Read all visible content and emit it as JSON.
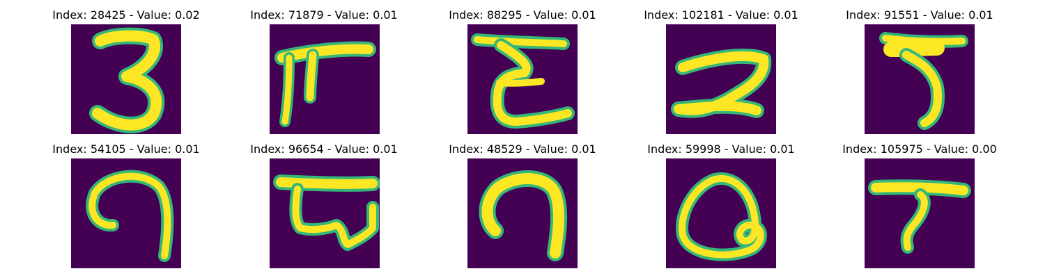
{
  "figure": {
    "panels": [
      {
        "title": "Index: 28425 - Value: 0.02",
        "glyph": "handwritten digit resembling 3",
        "colormap": "viridis"
      },
      {
        "title": "Index: 71879 - Value: 0.01",
        "glyph": "handwritten glyph resembling pi / F",
        "colormap": "viridis"
      },
      {
        "title": "Index: 88295 - Value: 0.01",
        "glyph": "handwritten glyph resembling E / 3 with top bar",
        "colormap": "viridis"
      },
      {
        "title": "Index: 102181 - Value: 0.01",
        "glyph": "handwritten glyph resembling 2",
        "colormap": "viridis"
      },
      {
        "title": "Index: 91551 - Value: 0.01",
        "glyph": "handwritten glyph resembling 5",
        "colormap": "viridis"
      },
      {
        "title": "Index: 54105 - Value: 0.01",
        "glyph": "handwritten glyph resembling reversed 6 / 9",
        "colormap": "viridis"
      },
      {
        "title": "Index: 96654 - Value: 0.01",
        "glyph": "handwritten glyph with top bar and loops",
        "colormap": "viridis"
      },
      {
        "title": "Index: 48529 - Value: 0.01",
        "glyph": "handwritten glyph resembling reversed 6 / 9",
        "colormap": "viridis"
      },
      {
        "title": "Index: 59998 - Value: 0.01",
        "glyph": "handwritten glyph resembling loop / 8",
        "colormap": "viridis"
      },
      {
        "title": "Index: 105975 - Value: 0.00",
        "glyph": "handwritten glyph resembling T / 7",
        "colormap": "viridis"
      }
    ],
    "colors": {
      "background": "#440154",
      "stroke_core": "#fde725",
      "stroke_edge": "#35b779",
      "stroke_mid": "#21918c"
    }
  }
}
